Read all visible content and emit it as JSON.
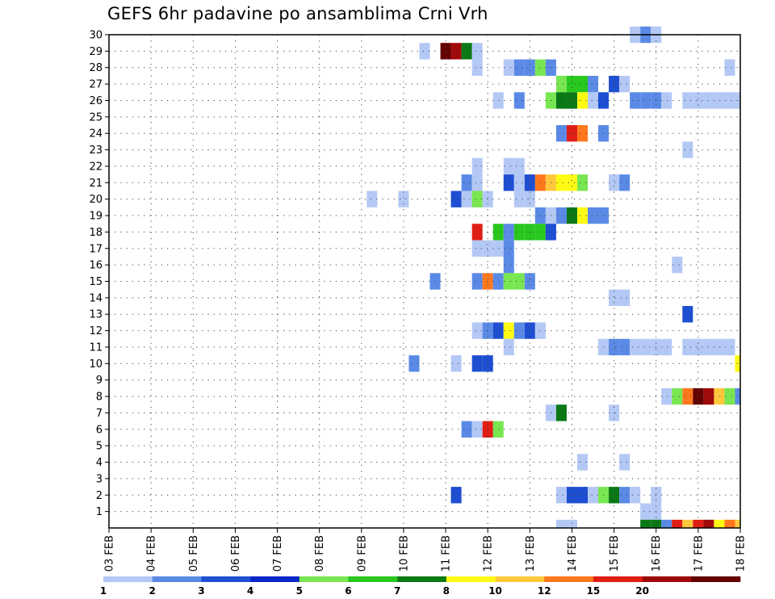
{
  "title": "GEFS 6hr padavine po ansamblima Crni Vrh",
  "chart_data": {
    "type": "heatmap",
    "title": "GEFS 6hr padavine po ansamblima Crni Vrh",
    "x_labels": [
      "03 FEB",
      "04 FEB",
      "05 FEB",
      "06 FEB",
      "07 FEB",
      "08 FEB",
      "09 FEB",
      "10 FEB",
      "11 FEB",
      "12 FEB",
      "13 FEB",
      "14 FEB",
      "15 FEB",
      "16 FEB",
      "17 FEB",
      "18 FEB"
    ],
    "x_range_days": [
      3,
      18
    ],
    "step_hours": 6,
    "y_labels": [
      "1",
      "2",
      "3",
      "4",
      "5",
      "6",
      "7",
      "8",
      "9",
      "10",
      "11",
      "12",
      "13",
      "14",
      "15",
      "16",
      "17",
      "18",
      "19",
      "20",
      "21",
      "22",
      "23",
      "24",
      "25",
      "26",
      "27",
      "28",
      "29",
      "30"
    ],
    "y_range": [
      0,
      30
    ],
    "grid": "dotted",
    "colorbar": {
      "ticks": [
        "1",
        "2",
        "3",
        "4",
        "5",
        "6",
        "7",
        "8",
        "10",
        "12",
        "15",
        "20"
      ],
      "colors": [
        "#b4c8f5",
        "#5a8ae6",
        "#1e4ed2",
        "#0a28c8",
        "#78e650",
        "#28c81e",
        "#0a7814",
        "#fffa14",
        "#ffc83c",
        "#ff781e",
        "#e11e14",
        "#a00a0a",
        "#640000"
      ]
    },
    "cells": [
      [
        30,
        15.5,
        0
      ],
      [
        30,
        15.75,
        1
      ],
      [
        30,
        16.0,
        0
      ],
      [
        29,
        10.5,
        0
      ],
      [
        29,
        11.0,
        12
      ],
      [
        29,
        11.25,
        11
      ],
      [
        29,
        11.5,
        6
      ],
      [
        29,
        11.75,
        0
      ],
      [
        28,
        11.75,
        0
      ],
      [
        28,
        12.5,
        0
      ],
      [
        28,
        12.75,
        1
      ],
      [
        28,
        13.0,
        1
      ],
      [
        28,
        13.25,
        4
      ],
      [
        28,
        13.5,
        1
      ],
      [
        28,
        17.75,
        0
      ],
      [
        27,
        13.75,
        4
      ],
      [
        27,
        14.0,
        5
      ],
      [
        27,
        14.25,
        5
      ],
      [
        27,
        14.5,
        1
      ],
      [
        27,
        15.0,
        2
      ],
      [
        27,
        15.25,
        0
      ],
      [
        26,
        12.25,
        0
      ],
      [
        26,
        12.75,
        1
      ],
      [
        26,
        13.5,
        4
      ],
      [
        26,
        13.75,
        6
      ],
      [
        26,
        14.0,
        6
      ],
      [
        26,
        14.25,
        7
      ],
      [
        26,
        14.5,
        0
      ],
      [
        26,
        14.75,
        2
      ],
      [
        26,
        15.5,
        1
      ],
      [
        26,
        15.75,
        1
      ],
      [
        26,
        16.0,
        1
      ],
      [
        26,
        16.25,
        0
      ],
      [
        26,
        16.75,
        0
      ],
      [
        26,
        17.0,
        0
      ],
      [
        26,
        17.25,
        0
      ],
      [
        26,
        17.5,
        0
      ],
      [
        26,
        17.75,
        0
      ],
      [
        26,
        18.0,
        0
      ],
      [
        24,
        13.75,
        1
      ],
      [
        24,
        14.0,
        10
      ],
      [
        24,
        14.25,
        9
      ],
      [
        24,
        14.75,
        1
      ],
      [
        23,
        16.75,
        0
      ],
      [
        22,
        11.75,
        0
      ],
      [
        22,
        12.5,
        0
      ],
      [
        22,
        12.75,
        0
      ],
      [
        21,
        11.5,
        1
      ],
      [
        21,
        11.75,
        0
      ],
      [
        21,
        12.5,
        2
      ],
      [
        21,
        12.75,
        0
      ],
      [
        21,
        13.0,
        2
      ],
      [
        21,
        13.25,
        9
      ],
      [
        21,
        13.5,
        8
      ],
      [
        21,
        13.75,
        7
      ],
      [
        21,
        14.0,
        7
      ],
      [
        21,
        14.25,
        4
      ],
      [
        21,
        15.0,
        0
      ],
      [
        21,
        15.25,
        1
      ],
      [
        20,
        9.25,
        0
      ],
      [
        20,
        10.0,
        0
      ],
      [
        20,
        11.25,
        2
      ],
      [
        20,
        11.5,
        0
      ],
      [
        20,
        11.75,
        4
      ],
      [
        20,
        12.0,
        0
      ],
      [
        20,
        12.75,
        0
      ],
      [
        20,
        13.0,
        0
      ],
      [
        19,
        13.25,
        1
      ],
      [
        19,
        13.5,
        0
      ],
      [
        19,
        13.75,
        1
      ],
      [
        19,
        14.0,
        6
      ],
      [
        19,
        14.25,
        7
      ],
      [
        19,
        14.5,
        1
      ],
      [
        19,
        14.75,
        1
      ],
      [
        18,
        11.75,
        10
      ],
      [
        18,
        12.25,
        5
      ],
      [
        18,
        12.5,
        1
      ],
      [
        18,
        12.75,
        5
      ],
      [
        18,
        13.0,
        5
      ],
      [
        18,
        13.25,
        5
      ],
      [
        18,
        13.5,
        2
      ],
      [
        17,
        11.75,
        0
      ],
      [
        17,
        12.0,
        0
      ],
      [
        17,
        12.25,
        0
      ],
      [
        17,
        12.5,
        1
      ],
      [
        16,
        12.5,
        1
      ],
      [
        16,
        16.5,
        0
      ],
      [
        15,
        10.75,
        1
      ],
      [
        15,
        11.75,
        1
      ],
      [
        15,
        12.0,
        9
      ],
      [
        15,
        12.25,
        1
      ],
      [
        15,
        12.5,
        4
      ],
      [
        15,
        12.75,
        4
      ],
      [
        15,
        13.0,
        1
      ],
      [
        14,
        15.0,
        0
      ],
      [
        14,
        15.25,
        0
      ],
      [
        13,
        16.75,
        2
      ],
      [
        12,
        11.75,
        0
      ],
      [
        12,
        12.0,
        1
      ],
      [
        12,
        12.25,
        2
      ],
      [
        12,
        12.5,
        7
      ],
      [
        12,
        12.75,
        1
      ],
      [
        12,
        13.0,
        2
      ],
      [
        12,
        13.25,
        0
      ],
      [
        11,
        12.5,
        0
      ],
      [
        11,
        14.75,
        0
      ],
      [
        11,
        15.0,
        1
      ],
      [
        11,
        15.25,
        1
      ],
      [
        11,
        15.5,
        0
      ],
      [
        11,
        15.75,
        0
      ],
      [
        11,
        16.0,
        0
      ],
      [
        11,
        16.25,
        0
      ],
      [
        11,
        16.75,
        0
      ],
      [
        11,
        17.0,
        0
      ],
      [
        11,
        17.25,
        0
      ],
      [
        11,
        17.5,
        0
      ],
      [
        11,
        17.75,
        0
      ],
      [
        10,
        10.25,
        1
      ],
      [
        10,
        11.25,
        0
      ],
      [
        10,
        11.75,
        2
      ],
      [
        10,
        12.0,
        2
      ],
      [
        10,
        18.0,
        7
      ],
      [
        8,
        16.25,
        0
      ],
      [
        8,
        16.5,
        4
      ],
      [
        8,
        16.75,
        9
      ],
      [
        8,
        17.0,
        12
      ],
      [
        8,
        17.25,
        11
      ],
      [
        8,
        17.5,
        8
      ],
      [
        8,
        17.75,
        4
      ],
      [
        8,
        18.0,
        1
      ],
      [
        7,
        13.5,
        0
      ],
      [
        7,
        13.75,
        6
      ],
      [
        7,
        15.0,
        0
      ],
      [
        6,
        11.5,
        1
      ],
      [
        6,
        11.75,
        0
      ],
      [
        6,
        12.0,
        10
      ],
      [
        6,
        12.25,
        4
      ],
      [
        4,
        14.25,
        0
      ],
      [
        4,
        15.25,
        0
      ],
      [
        2,
        11.25,
        2
      ],
      [
        2,
        13.75,
        0
      ],
      [
        2,
        14.0,
        2
      ],
      [
        2,
        14.25,
        2
      ],
      [
        2,
        14.5,
        0
      ],
      [
        2,
        14.75,
        4
      ],
      [
        2,
        15.0,
        6
      ],
      [
        2,
        15.25,
        1
      ],
      [
        2,
        15.5,
        0
      ],
      [
        2,
        16.0,
        0
      ],
      [
        1,
        15.75,
        0
      ],
      [
        1,
        16.0,
        0
      ],
      [
        0,
        13.75,
        0
      ],
      [
        0,
        14.0,
        0
      ],
      [
        0,
        15.75,
        6
      ],
      [
        0,
        16.0,
        6
      ],
      [
        0,
        16.25,
        1
      ],
      [
        0,
        16.5,
        10
      ],
      [
        0,
        16.75,
        8
      ],
      [
        0,
        17.0,
        10
      ],
      [
        0,
        17.25,
        11
      ],
      [
        0,
        17.5,
        7
      ],
      [
        0,
        17.75,
        9
      ],
      [
        0,
        18.0,
        8
      ]
    ]
  }
}
